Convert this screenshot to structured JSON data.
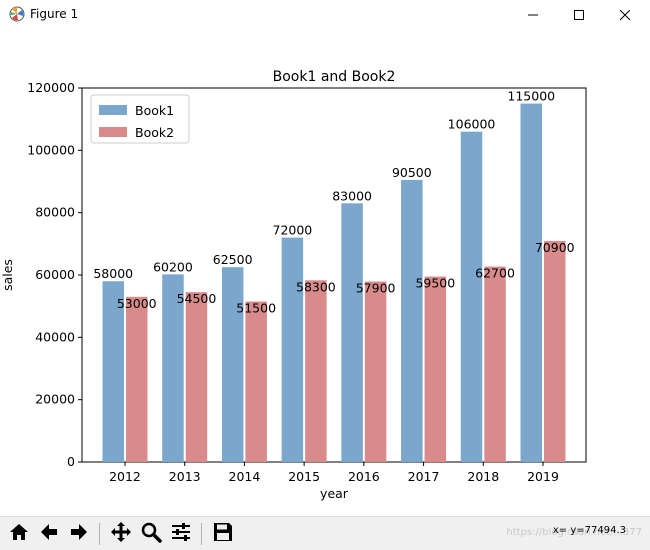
{
  "window": {
    "title": "Figure 1",
    "minimize_icon": "minimize-icon",
    "maximize_icon": "maximize-icon",
    "close_icon": "close-icon"
  },
  "chart_data": {
    "type": "bar",
    "title": "Book1 and Book2",
    "xlabel": "year",
    "ylabel": "sales",
    "categories": [
      "2012",
      "2013",
      "2014",
      "2015",
      "2016",
      "2017",
      "2018",
      "2019"
    ],
    "series": [
      {
        "name": "Book1",
        "values": [
          58000,
          60200,
          62500,
          72000,
          83000,
          90500,
          106000,
          115000
        ],
        "color": "#7ba7cc"
      },
      {
        "name": "Book2",
        "values": [
          53000,
          54500,
          51500,
          58300,
          57900,
          59500,
          62700,
          70900
        ],
        "color": "#d98b8b"
      }
    ],
    "ylim": [
      0,
      120000
    ],
    "yticks": [
      0,
      20000,
      40000,
      60000,
      80000,
      100000,
      120000
    ],
    "legend_position": "upper-left",
    "grid": false
  },
  "toolbar": {
    "buttons": [
      {
        "name": "home-button",
        "icon": "home-icon"
      },
      {
        "name": "back-button",
        "icon": "arrow-left-icon"
      },
      {
        "name": "forward-button",
        "icon": "arrow-right-icon"
      },
      {
        "name": "pan-button",
        "icon": "move-icon"
      },
      {
        "name": "zoom-button",
        "icon": "magnifier-icon"
      },
      {
        "name": "configure-subplots-button",
        "icon": "sliders-icon"
      },
      {
        "name": "save-button",
        "icon": "floppy-disk-icon"
      }
    ],
    "coordinates": "x=  y=77494.3",
    "watermark": "https://blog.csdn.net/...377"
  }
}
